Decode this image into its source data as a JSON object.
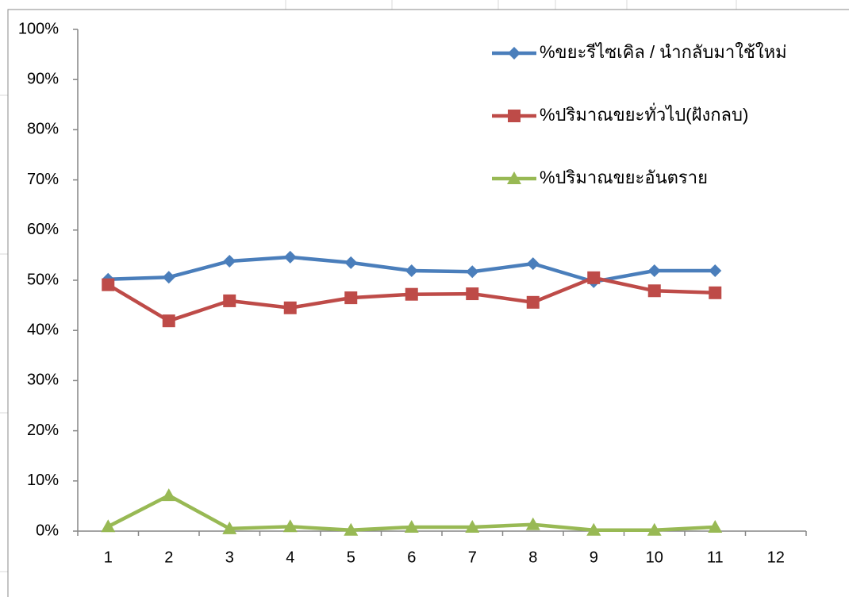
{
  "chart_data": {
    "type": "line",
    "categories": [
      "1",
      "2",
      "3",
      "4",
      "5",
      "6",
      "7",
      "8",
      "9",
      "10",
      "11",
      "12"
    ],
    "series": [
      {
        "name": "%ขยะรีไซเคิล / นำกลับมาใช้ใหม่",
        "color": "#4a7ebb",
        "marker": "diamond",
        "values": [
          50.2,
          50.6,
          53.8,
          54.6,
          53.5,
          51.9,
          51.7,
          53.3,
          49.7,
          51.9,
          51.9,
          null
        ]
      },
      {
        "name": "%ปริมาณขยะทั่วไป(ฝังกลบ)",
        "color": "#be4b48",
        "marker": "square",
        "values": [
          49.1,
          41.9,
          45.9,
          44.5,
          46.5,
          47.2,
          47.3,
          45.6,
          50.5,
          47.9,
          47.5,
          null
        ]
      },
      {
        "name": "%ปริมาณขยะอันตราย",
        "color": "#98b954",
        "marker": "triangle",
        "values": [
          0.9,
          7.1,
          0.5,
          0.9,
          0.2,
          0.8,
          0.8,
          1.3,
          0.2,
          0.2,
          0.8,
          null
        ]
      }
    ],
    "ylim": [
      0,
      100
    ],
    "yticks": [
      {
        "value": 0,
        "label": "0%"
      },
      {
        "value": 10,
        "label": "10%"
      },
      {
        "value": 20,
        "label": "20%"
      },
      {
        "value": 30,
        "label": "30%"
      },
      {
        "value": 40,
        "label": "40%"
      },
      {
        "value": 50,
        "label": "50%"
      },
      {
        "value": 60,
        "label": "60%"
      },
      {
        "value": 70,
        "label": "70%"
      },
      {
        "value": 80,
        "label": "80%"
      },
      {
        "value": 90,
        "label": "90%"
      },
      {
        "value": 100,
        "label": "100%"
      }
    ],
    "grid": false,
    "legend": "top-right"
  }
}
